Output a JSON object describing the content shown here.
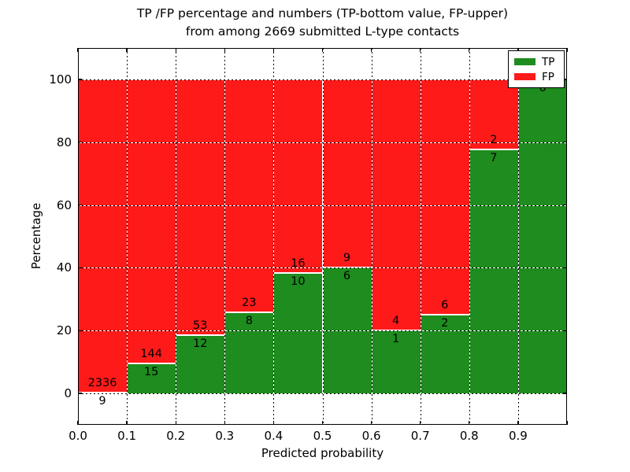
{
  "title": {
    "line1": "TP /FP percentage and numbers (TP-bottom value, FP-upper)",
    "line2": "from among 2669 submitted L-type contacts"
  },
  "chart_data": {
    "type": "bar",
    "stacked": true,
    "normalized_to_percent": true,
    "title": "TP /FP percentage and numbers (TP-bottom value, FP-upper)\nfrom among 2669 submitted L-type contacts",
    "xlabel": "Predicted probability",
    "ylabel": "Percentage",
    "total_submitted_contacts": 2669,
    "bin_width": 0.1,
    "bin_starts": [
      0.0,
      0.1,
      0.2,
      0.3,
      0.4,
      0.5,
      0.6,
      0.7,
      0.8,
      0.9
    ],
    "series": [
      {
        "name": "TP",
        "color": "#1e8c1e",
        "values": [
          9,
          15,
          12,
          8,
          10,
          6,
          1,
          2,
          7,
          6
        ]
      },
      {
        "name": "FP",
        "color": "#ff1a1a",
        "values": [
          2336,
          144,
          53,
          23,
          16,
          9,
          4,
          6,
          2,
          0
        ]
      }
    ],
    "tp_percent_of_bin": [
      0.38,
      9.43,
      18.46,
      25.81,
      38.46,
      40.0,
      20.0,
      25.0,
      77.78,
      100.0
    ],
    "x_ticks": [
      "0.0",
      "0.1",
      "0.2",
      "0.3",
      "0.4",
      "0.5",
      "0.6",
      "0.7",
      "0.8",
      "0.9"
    ],
    "x_tick_values": [
      0.0,
      0.1,
      0.2,
      0.3,
      0.4,
      0.5,
      0.6,
      0.7,
      0.8,
      0.9
    ],
    "y_ticks": [
      "0",
      "20",
      "40",
      "60",
      "80",
      "100"
    ],
    "y_tick_values": [
      0,
      20,
      40,
      60,
      80,
      100
    ],
    "xlim": [
      0.0,
      1.0
    ],
    "ylim": [
      -10,
      110
    ],
    "grid": true,
    "grid_style": "dotted",
    "legend": {
      "position": "upper right",
      "items": [
        {
          "label": "TP",
          "color": "#1e8c1e"
        },
        {
          "label": "FP",
          "color": "#ff1a1a"
        }
      ]
    }
  }
}
